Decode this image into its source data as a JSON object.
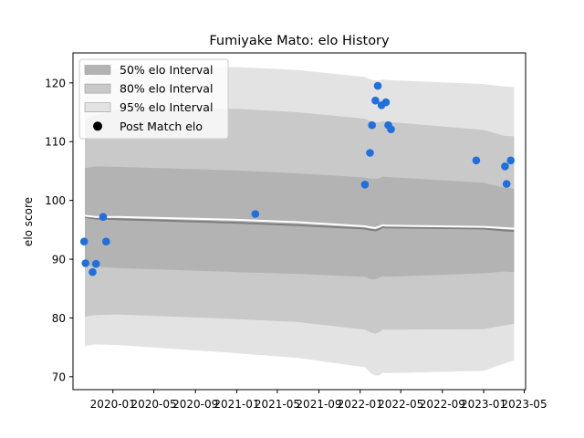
{
  "chart_data": {
    "type": "line",
    "title": "Fumiyake Mato: elo History",
    "xlabel": "",
    "ylabel": "elo score",
    "xlim": [
      "2019-09-05",
      "2023-05-05"
    ],
    "ylim": [
      67.8,
      125.1
    ],
    "x_ticks": [
      "2020-01",
      "2020-05",
      "2020-09",
      "2021-01",
      "2021-05",
      "2021-09",
      "2022-01",
      "2022-05",
      "2022-09",
      "2023-01",
      "2023-05"
    ],
    "y_ticks": [
      70,
      80,
      90,
      100,
      110,
      120
    ],
    "grid": false,
    "legend_position": "top-left",
    "colors": {
      "band_50": "#b3b3b3",
      "band_80": "#c9c9c9",
      "band_95": "#e3e3e3",
      "mean_line": "#7f7f7f",
      "median_line": "#ffffff",
      "points": "#1f6fdf"
    },
    "legend": [
      {
        "label": "50% elo Interval",
        "kind": "band_50"
      },
      {
        "label": "80% elo Interval",
        "kind": "band_80"
      },
      {
        "label": "95% elo Interval",
        "kind": "band_95"
      },
      {
        "label": "Post Match elo",
        "kind": "point"
      }
    ],
    "bands": {
      "x": [
        "2019-10-10",
        "2019-11-10",
        "2020-01-15",
        "2021-01-01",
        "2021-07-01",
        "2022-01-15",
        "2022-02-01",
        "2022-02-15",
        "2022-02-25",
        "2022-03-10",
        "2022-03-15",
        "2023-01-01",
        "2023-03-01",
        "2023-04-01"
      ],
      "mean": [
        97.2,
        96.9,
        96.8,
        96.2,
        95.8,
        95.2,
        95.0,
        94.9,
        95.1,
        95.5,
        95.4,
        95.2,
        94.9,
        94.8
      ],
      "median": [
        97.4,
        97.2,
        97.2,
        96.7,
        96.3,
        95.6,
        95.4,
        95.3,
        95.5,
        95.8,
        95.7,
        95.5,
        95.3,
        95.2
      ],
      "p50": {
        "lower": [
          89.0,
          88.7,
          88.5,
          87.8,
          87.5,
          87.0,
          86.6,
          86.6,
          86.8,
          87.2,
          87.0,
          87.6,
          87.9,
          87.8
        ],
        "upper": [
          105.5,
          105.8,
          105.7,
          105.1,
          104.6,
          103.9,
          103.7,
          103.7,
          103.7,
          104.1,
          104.0,
          103.0,
          102.2,
          102.0
        ]
      },
      "p80": {
        "lower": [
          80.2,
          80.5,
          80.6,
          79.8,
          79.3,
          78.0,
          77.5,
          77.3,
          77.5,
          78.0,
          78.0,
          78.1,
          78.7,
          79.0
        ],
        "upper": [
          113.8,
          114.5,
          115.5,
          115.6,
          115.0,
          113.9,
          113.5,
          113.3,
          113.3,
          113.5,
          113.4,
          112.0,
          111.0,
          110.9
        ]
      },
      "p95": {
        "lower": [
          75.2,
          75.5,
          75.4,
          74.0,
          73.2,
          71.6,
          70.6,
          70.2,
          70.2,
          70.7,
          70.6,
          71.0,
          72.2,
          72.8
        ],
        "upper": [
          120.7,
          121.3,
          122.5,
          122.7,
          122.2,
          121.0,
          120.6,
          120.4,
          120.4,
          120.6,
          120.5,
          119.8,
          119.4,
          119.3
        ]
      }
    },
    "points": {
      "x": [
        "2019-10-08",
        "2019-10-12",
        "2019-11-02",
        "2019-11-12",
        "2019-12-03",
        "2019-12-12",
        "2021-02-25",
        "2022-01-15",
        "2022-01-30",
        "2022-02-05",
        "2022-02-15",
        "2022-02-22",
        "2022-03-05",
        "2022-03-18",
        "2022-03-25",
        "2022-04-02",
        "2022-12-10",
        "2023-03-05",
        "2023-03-10",
        "2023-03-22"
      ],
      "y": [
        93.0,
        89.3,
        87.8,
        89.2,
        97.2,
        93.0,
        97.7,
        102.7,
        108.1,
        112.8,
        117.0,
        119.5,
        116.2,
        116.7,
        112.8,
        112.1,
        106.8,
        105.8,
        102.8,
        106.8
      ]
    }
  }
}
